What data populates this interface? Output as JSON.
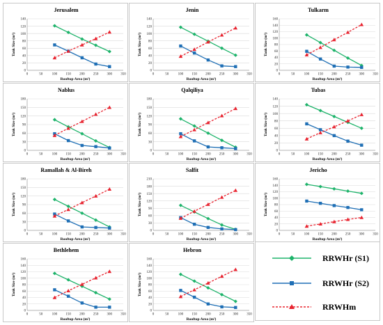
{
  "colors": {
    "s1": "#1db36a",
    "s2": "#1f6fb5",
    "hm": "#e8232f",
    "grid": "#d9d9d9",
    "axis": "#9a9a9a"
  },
  "common": {
    "xlabel": "Rooftop Area (m²)",
    "ylabel": "Tank Size (m³)"
  },
  "legend": [
    {
      "label": "RRWHr (S1)",
      "color": "#1db36a",
      "marker": "diamond",
      "dash": false
    },
    {
      "label": "RRWHr (S2)",
      "color": "#1f6fb5",
      "marker": "square",
      "dash": false
    },
    {
      "label": "RRWHm",
      "color": "#e8232f",
      "marker": "triangle",
      "dash": true
    }
  ],
  "chart_data": [
    {
      "type": "line",
      "title": "Jerusalem",
      "xlabel": "Rooftop Area (m²)",
      "ylabel": "Tank Size (m³)",
      "xlim": [
        0,
        350
      ],
      "xticks": [
        0,
        50,
        100,
        150,
        200,
        250,
        300,
        350
      ],
      "ylim": [
        0,
        140
      ],
      "yticks": [
        0,
        20,
        40,
        60,
        80,
        100,
        120,
        140
      ],
      "x": [
        100,
        150,
        200,
        250,
        300
      ],
      "series": [
        {
          "name": "RRWHr (S1)",
          "values": [
            121,
            103,
            85,
            68,
            51
          ]
        },
        {
          "name": "RRWHr (S2)",
          "values": [
            69,
            52,
            34,
            17,
            10
          ]
        },
        {
          "name": "RRWHm",
          "values": [
            34,
            52,
            69,
            86,
            104
          ]
        }
      ]
    },
    {
      "type": "line",
      "title": "Jenin",
      "xlabel": "Rooftop Area (m²)",
      "ylabel": "Tank Size (m³)",
      "xlim": [
        0,
        350
      ],
      "xticks": [
        0,
        50,
        100,
        150,
        200,
        250,
        300,
        350
      ],
      "ylim": [
        0,
        140
      ],
      "yticks": [
        0,
        20,
        40,
        60,
        80,
        100,
        120,
        140
      ],
      "x": [
        100,
        150,
        200,
        250,
        300
      ],
      "series": [
        {
          "name": "RRWHr (S1)",
          "values": [
            117,
            98,
            79,
            60,
            41
          ]
        },
        {
          "name": "RRWHr (S2)",
          "values": [
            66,
            47,
            28,
            12,
            10
          ]
        },
        {
          "name": "RRWHm",
          "values": [
            38,
            57,
            77,
            96,
            115
          ]
        }
      ]
    },
    {
      "type": "line",
      "title": "Tulkarm",
      "xlabel": "Rooftop Area (m²)",
      "ylabel": "Tank Size (m³)",
      "xlim": [
        0,
        350
      ],
      "xticks": [
        0,
        50,
        100,
        150,
        200,
        250,
        300,
        350
      ],
      "ylim": [
        0,
        160
      ],
      "yticks": [
        0,
        20,
        40,
        60,
        80,
        100,
        120,
        140,
        160
      ],
      "x": [
        100,
        150,
        200,
        250,
        300
      ],
      "series": [
        {
          "name": "RRWHr (S1)",
          "values": [
            110,
            86,
            62,
            38,
            15
          ]
        },
        {
          "name": "RRWHr (S2)",
          "values": [
            59,
            35,
            13,
            10,
            9
          ]
        },
        {
          "name": "RRWHm",
          "values": [
            48,
            71,
            95,
            118,
            142
          ]
        }
      ]
    },
    {
      "type": "line",
      "title": "Nablus",
      "xlabel": "Rooftop Area (m²)",
      "ylabel": "Tank Size (m³)",
      "xlim": [
        0,
        350
      ],
      "xticks": [
        0,
        50,
        100,
        150,
        200,
        250,
        300,
        350
      ],
      "ylim": [
        0,
        180
      ],
      "yticks": [
        0,
        30,
        60,
        90,
        120,
        150,
        180
      ],
      "x": [
        100,
        150,
        200,
        250,
        300
      ],
      "series": [
        {
          "name": "RRWHr (S1)",
          "values": [
            107,
            82,
            58,
            33,
            10
          ]
        },
        {
          "name": "RRWHr (S2)",
          "values": [
            58,
            34,
            17,
            13,
            8
          ]
        },
        {
          "name": "RRWHm",
          "values": [
            52,
            77,
            101,
            126,
            150
          ]
        }
      ]
    },
    {
      "type": "line",
      "title": "Qalqiliya",
      "xlabel": "Rooftop Area (m²)",
      "ylabel": "Tank Size (m³)",
      "xlim": [
        0,
        350
      ],
      "xticks": [
        0,
        50,
        100,
        150,
        200,
        250,
        300,
        350
      ],
      "ylim": [
        0,
        180
      ],
      "yticks": [
        0,
        30,
        60,
        90,
        120,
        150,
        180
      ],
      "x": [
        100,
        150,
        200,
        250,
        300
      ],
      "series": [
        {
          "name": "RRWHr (S1)",
          "values": [
            110,
            85,
            60,
            35,
            11
          ]
        },
        {
          "name": "RRWHr (S2)",
          "values": [
            58,
            33,
            12,
            9,
            6
          ]
        },
        {
          "name": "RRWHm",
          "values": [
            48,
            72,
            97,
            121,
            146
          ]
        }
      ]
    },
    {
      "type": "line",
      "title": "Tubas",
      "xlabel": "Rooftop Area (m²)",
      "ylabel": "Tank Size (m³)",
      "xlim": [
        0,
        350
      ],
      "xticks": [
        0,
        50,
        100,
        150,
        200,
        250,
        300,
        350
      ],
      "ylim": [
        0,
        140
      ],
      "yticks": [
        0,
        20,
        40,
        60,
        80,
        100,
        120,
        140
      ],
      "x": [
        100,
        150,
        200,
        250,
        300
      ],
      "series": [
        {
          "name": "RRWHr (S1)",
          "values": [
            124,
            108,
            92,
            76,
            60
          ]
        },
        {
          "name": "RRWHr (S2)",
          "values": [
            72,
            56,
            40,
            25,
            14
          ]
        },
        {
          "name": "RRWHm",
          "values": [
            31,
            48,
            64,
            80,
            97
          ]
        }
      ]
    },
    {
      "type": "line",
      "title": "Ramallah & Al-Bireh",
      "xlabel": "Rooftop Area (m²)",
      "ylabel": "Tank Size (m³)",
      "xlim": [
        0,
        350
      ],
      "xticks": [
        0,
        50,
        100,
        150,
        200,
        250,
        300,
        350
      ],
      "ylim": [
        0,
        180
      ],
      "yticks": [
        0,
        30,
        60,
        90,
        120,
        150,
        180
      ],
      "x": [
        100,
        150,
        200,
        250,
        300
      ],
      "series": [
        {
          "name": "RRWHr (S1)",
          "values": [
            108,
            84,
            60,
            36,
            12
          ]
        },
        {
          "name": "RRWHr (S2)",
          "values": [
            57,
            33,
            12,
            10,
            8
          ]
        },
        {
          "name": "RRWHm",
          "values": [
            50,
            73,
            97,
            120,
            144
          ]
        }
      ]
    },
    {
      "type": "line",
      "title": "Salfit",
      "xlabel": "Rooftop Area (m²)",
      "ylabel": "Tank Size (m³)",
      "xlim": [
        0,
        350
      ],
      "xticks": [
        0,
        50,
        100,
        150,
        200,
        250,
        300,
        350
      ],
      "ylim": [
        0,
        210
      ],
      "yticks": [
        0,
        30,
        60,
        90,
        120,
        150,
        180,
        210
      ],
      "x": [
        100,
        150,
        200,
        250,
        300
      ],
      "series": [
        {
          "name": "RRWHr (S1)",
          "values": [
            102,
            75,
            48,
            22,
            4
          ]
        },
        {
          "name": "RRWHr (S2)",
          "values": [
            52,
            25,
            12,
            6,
            3
          ]
        },
        {
          "name": "RRWHm",
          "values": [
            49,
            78,
            106,
            135,
            163
          ]
        }
      ]
    },
    {
      "type": "line",
      "title": "Jericho",
      "xlabel": "Rooftop Area (m²)",
      "ylabel": "Tank Size (m³)",
      "xlim": [
        0,
        350
      ],
      "xticks": [
        0,
        50,
        100,
        150,
        200,
        250,
        300,
        350
      ],
      "ylim": [
        0,
        160
      ],
      "yticks": [
        0,
        20,
        40,
        60,
        80,
        100,
        120,
        140,
        160
      ],
      "x": [
        100,
        150,
        200,
        250,
        300
      ],
      "series": [
        {
          "name": "RRWHr (S1)",
          "values": [
            143,
            136,
            129,
            122,
            115
          ]
        },
        {
          "name": "RRWHr (S2)",
          "values": [
            91,
            84,
            77,
            71,
            64
          ]
        },
        {
          "name": "RRWHm",
          "values": [
            13,
            20,
            27,
            34,
            40
          ]
        }
      ]
    },
    {
      "type": "line",
      "title": "Bethlehem",
      "xlabel": "Rooftop Area (m²)",
      "ylabel": "Tank Size (m³)",
      "xlim": [
        0,
        350
      ],
      "xticks": [
        0,
        50,
        100,
        150,
        200,
        250,
        300,
        350
      ],
      "ylim": [
        0,
        160
      ],
      "yticks": [
        0,
        20,
        40,
        60,
        80,
        100,
        120,
        140,
        160
      ],
      "x": [
        100,
        150,
        200,
        250,
        300
      ],
      "series": [
        {
          "name": "RRWHr (S1)",
          "values": [
            115,
            95,
            75,
            55,
            35
          ]
        },
        {
          "name": "RRWHr (S2)",
          "values": [
            64,
            44,
            23,
            10,
            10
          ]
        },
        {
          "name": "RRWHm",
          "values": [
            40,
            61,
            81,
            101,
            121
          ]
        }
      ]
    },
    {
      "type": "line",
      "title": "Hebron",
      "xlabel": "Rooftop Area (m²)",
      "ylabel": "Tank Size (m³)",
      "xlim": [
        0,
        350
      ],
      "xticks": [
        0,
        50,
        100,
        150,
        200,
        250,
        300,
        350
      ],
      "ylim": [
        0,
        160
      ],
      "yticks": [
        0,
        20,
        40,
        60,
        80,
        100,
        120,
        140,
        160
      ],
      "x": [
        100,
        150,
        200,
        250,
        300
      ],
      "series": [
        {
          "name": "RRWHr (S1)",
          "values": [
            112,
            91,
            70,
            49,
            28
          ]
        },
        {
          "name": "RRWHr (S2)",
          "values": [
            62,
            41,
            20,
            11,
            9
          ]
        },
        {
          "name": "RRWHm",
          "values": [
            43,
            64,
            85,
            106,
            127
          ]
        }
      ]
    }
  ]
}
